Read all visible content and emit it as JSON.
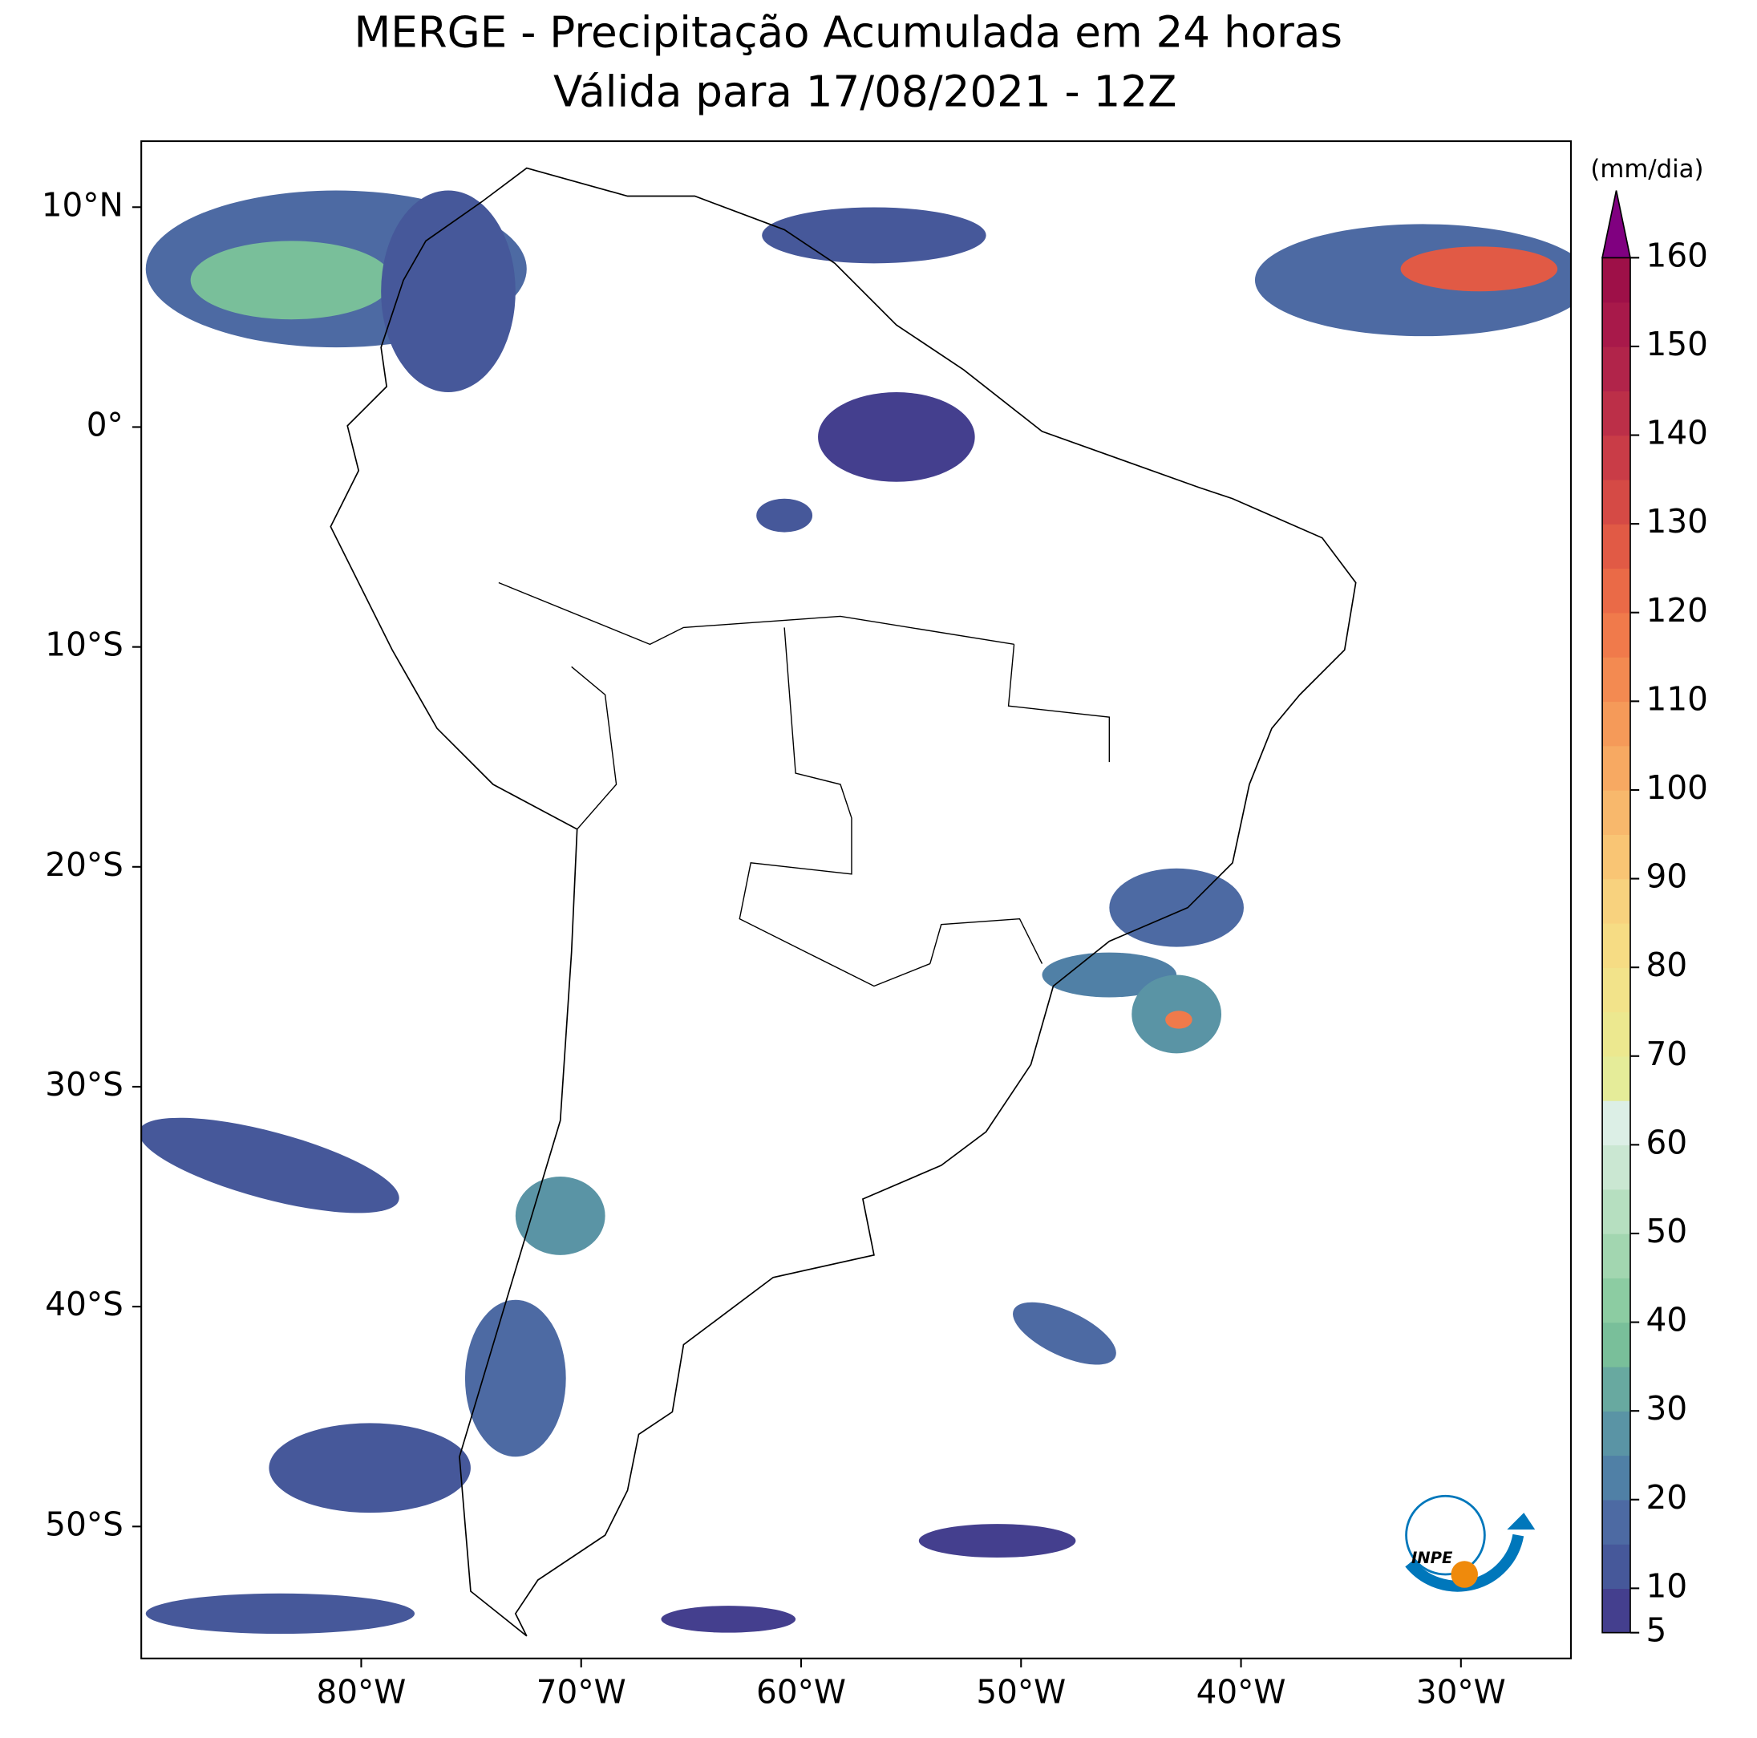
{
  "chart_data": {
    "type": "map",
    "title": "MERGE - Precipitação Acumulada em 24 horas",
    "subtitle": "Válida para 17/08/2021 - 12Z",
    "xlim": [
      -90,
      -25
    ],
    "ylim": [
      -56,
      13
    ],
    "xticks": [
      {
        "value": -80,
        "label": "80°W"
      },
      {
        "value": -70,
        "label": "70°W"
      },
      {
        "value": -60,
        "label": "60°W"
      },
      {
        "value": -50,
        "label": "50°W"
      },
      {
        "value": -40,
        "label": "40°W"
      },
      {
        "value": -30,
        "label": "30°W"
      }
    ],
    "yticks": [
      {
        "value": 10,
        "label": "10°N"
      },
      {
        "value": 0,
        "label": "0°"
      },
      {
        "value": -10,
        "label": "10°S"
      },
      {
        "value": -20,
        "label": "20°S"
      },
      {
        "value": -30,
        "label": "30°S"
      },
      {
        "value": -40,
        "label": "40°S"
      },
      {
        "value": -50,
        "label": "50°S"
      }
    ],
    "colorbar": {
      "label": "(mm/dia)",
      "lim": [
        5,
        160
      ],
      "ticks": [
        5,
        10,
        20,
        30,
        40,
        50,
        60,
        70,
        80,
        90,
        100,
        110,
        120,
        130,
        140,
        150,
        160
      ],
      "colors": [
        "#443f8e",
        "#46589a",
        "#4d6aa3",
        "#5080a6",
        "#5a94a5",
        "#68a9a0",
        "#79bf9a",
        "#8ccca2",
        "#a2d6b0",
        "#b6dfc0",
        "#cae7d2",
        "#dcefe6",
        "#e5ec99",
        "#ece88f",
        "#f2e38a",
        "#f6dc84",
        "#f8d27e",
        "#f9c574",
        "#f8b86c",
        "#f7a962",
        "#f59a59",
        "#f38a51",
        "#f07a4b",
        "#ea6a47",
        "#e15a45",
        "#d54a45",
        "#c93c47",
        "#bc2f48",
        "#b1244a",
        "#a8194a",
        "#9e1048"
      ],
      "extend_color": "#800080"
    }
  },
  "logo_text": "INPE"
}
